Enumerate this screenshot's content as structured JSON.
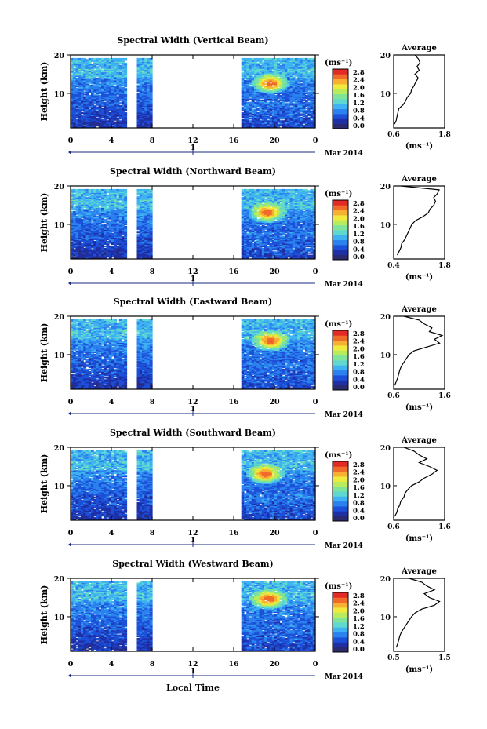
{
  "x_axis_label": "Local Time",
  "date_label": "Mar 2014",
  "day_label": "1",
  "colorbar": {
    "unit": "(ms⁻¹)",
    "ticks": [
      "0.0",
      "0.4",
      "0.8",
      "1.2",
      "1.6",
      "2.0",
      "2.4",
      "2.8"
    ],
    "colors": [
      "#2a2a6e",
      "#1f2fa6",
      "#1c50d8",
      "#2b82ef",
      "#3fb3f2",
      "#5fd8d0",
      "#7fe39a",
      "#b8ec5c",
      "#f0ea3e",
      "#f7b032",
      "#f06a2a",
      "#e22a26"
    ]
  },
  "chart_data": [
    {
      "type": "heatmap",
      "title": "Spectral Width (Vertical Beam)",
      "ylabel": "Height (km)",
      "xlim": [
        0,
        24
      ],
      "ylim": [
        1,
        20
      ],
      "x_ticks": [
        "0",
        "4",
        "8",
        "12",
        "16",
        "20",
        "0"
      ],
      "y_ticks": [
        "10",
        "20"
      ],
      "data_gaps": [
        [
          5.5,
          6.6
        ],
        [
          8.0,
          16.8
        ]
      ],
      "features": [
        {
          "time": 19.5,
          "height": 12.5,
          "value": 2.8,
          "note": "peak"
        }
      ],
      "average_profile": {
        "title": "Average",
        "xlabel": "(ms⁻¹)",
        "xlim": [
          0.6,
          1.8
        ],
        "x_ticks": [
          "0.6",
          "1.8"
        ],
        "height": [
          2,
          3,
          4,
          5,
          6,
          7,
          8,
          9,
          10,
          11,
          12,
          13,
          14,
          15,
          16,
          17,
          18,
          19,
          20
        ],
        "value": [
          0.62,
          0.66,
          0.68,
          0.7,
          0.72,
          0.82,
          0.88,
          0.92,
          1.0,
          1.02,
          1.08,
          1.12,
          1.18,
          1.1,
          1.2,
          1.15,
          1.22,
          1.18,
          1.1
        ]
      }
    },
    {
      "type": "heatmap",
      "title": "Spectral Width (Northward Beam)",
      "ylabel": "Height (km)",
      "xlim": [
        0,
        24
      ],
      "ylim": [
        1,
        20
      ],
      "x_ticks": [
        "0",
        "4",
        "8",
        "12",
        "16",
        "20",
        "0"
      ],
      "y_ticks": [
        "10",
        "20"
      ],
      "data_gaps": [
        [
          5.5,
          6.6
        ],
        [
          8.0,
          16.8
        ]
      ],
      "features": [
        {
          "time": 19.2,
          "height": 13.0,
          "value": 2.8,
          "note": "peak"
        }
      ],
      "average_profile": {
        "title": "Average",
        "xlabel": "(ms⁻¹)",
        "xlim": [
          0.4,
          1.8
        ],
        "x_ticks": [
          "0.4",
          "1.8"
        ],
        "height": [
          2,
          3,
          4,
          5,
          6,
          7,
          8,
          9,
          10,
          11,
          12,
          13,
          14,
          15,
          16,
          17,
          18,
          19,
          20
        ],
        "value": [
          0.5,
          0.55,
          0.6,
          0.62,
          0.7,
          0.75,
          0.8,
          0.85,
          0.9,
          1.0,
          1.2,
          1.35,
          1.4,
          1.5,
          1.55,
          1.5,
          1.6,
          1.65,
          0.6
        ]
      }
    },
    {
      "type": "heatmap",
      "title": "Spectral Width (Eastward Beam)",
      "ylabel": "Height (km)",
      "xlim": [
        0,
        24
      ],
      "ylim": [
        1,
        20
      ],
      "x_ticks": [
        "0",
        "4",
        "8",
        "12",
        "16",
        "20",
        "0"
      ],
      "y_ticks": [
        "10",
        "20"
      ],
      "data_gaps": [
        [
          5.5,
          6.6
        ],
        [
          8.0,
          16.8
        ]
      ],
      "features": [
        {
          "time": 19.5,
          "height": 13.5,
          "value": 2.8,
          "note": "peak"
        }
      ],
      "average_profile": {
        "title": "Average",
        "xlabel": "(ms⁻¹)",
        "xlim": [
          0.6,
          1.6
        ],
        "x_ticks": [
          "0.6",
          "1.6"
        ],
        "height": [
          2,
          3,
          4,
          5,
          6,
          7,
          8,
          9,
          10,
          11,
          12,
          13,
          14,
          15,
          16,
          17,
          18,
          19,
          20
        ],
        "value": [
          0.62,
          0.65,
          0.68,
          0.7,
          0.72,
          0.75,
          0.8,
          0.85,
          0.9,
          1.0,
          1.25,
          1.5,
          1.4,
          1.55,
          1.3,
          1.35,
          1.2,
          1.1,
          0.8
        ]
      }
    },
    {
      "type": "heatmap",
      "title": "Spectral Width (Southward Beam)",
      "ylabel": "Height (km)",
      "xlim": [
        0,
        24
      ],
      "ylim": [
        1,
        20
      ],
      "x_ticks": [
        "0",
        "4",
        "8",
        "12",
        "16",
        "20",
        "0"
      ],
      "y_ticks": [
        "10",
        "20"
      ],
      "data_gaps": [
        [
          5.5,
          6.6
        ],
        [
          8.0,
          16.8
        ]
      ],
      "features": [
        {
          "time": 19.0,
          "height": 13.0,
          "value": 2.8,
          "note": "peak"
        }
      ],
      "average_profile": {
        "title": "Average",
        "xlabel": "(ms⁻¹)",
        "xlim": [
          0.6,
          1.6
        ],
        "x_ticks": [
          "0.6",
          "1.6"
        ],
        "height": [
          2,
          3,
          4,
          5,
          6,
          7,
          8,
          9,
          10,
          11,
          12,
          13,
          14,
          15,
          16,
          17,
          18,
          19,
          20
        ],
        "value": [
          0.62,
          0.66,
          0.68,
          0.72,
          0.74,
          0.8,
          0.82,
          0.88,
          0.95,
          1.1,
          1.2,
          1.35,
          1.45,
          1.3,
          1.1,
          1.25,
          1.1,
          1.0,
          0.8
        ]
      }
    },
    {
      "type": "heatmap",
      "title": "Spectral Width (Westward Beam)",
      "ylabel": "Height (km)",
      "xlim": [
        0,
        24
      ],
      "ylim": [
        1,
        20
      ],
      "x_ticks": [
        "0",
        "4",
        "8",
        "12",
        "16",
        "20",
        "0"
      ],
      "y_ticks": [
        "10",
        "20"
      ],
      "data_gaps": [
        [
          5.5,
          6.6
        ],
        [
          8.0,
          16.8
        ]
      ],
      "features": [
        {
          "time": 19.3,
          "height": 14.5,
          "value": 2.8,
          "note": "peak"
        }
      ],
      "average_profile": {
        "title": "Average",
        "xlabel": "(ms⁻¹)",
        "xlim": [
          0.5,
          1.5
        ],
        "x_ticks": [
          "0.5",
          "1.5"
        ],
        "height": [
          2,
          3,
          4,
          5,
          6,
          7,
          8,
          9,
          10,
          11,
          12,
          13,
          14,
          15,
          16,
          17,
          18,
          19,
          20
        ],
        "value": [
          0.55,
          0.58,
          0.6,
          0.62,
          0.65,
          0.7,
          0.75,
          0.8,
          0.85,
          0.92,
          1.05,
          1.3,
          1.4,
          1.2,
          1.1,
          1.3,
          1.15,
          1.05,
          0.8
        ]
      }
    }
  ]
}
